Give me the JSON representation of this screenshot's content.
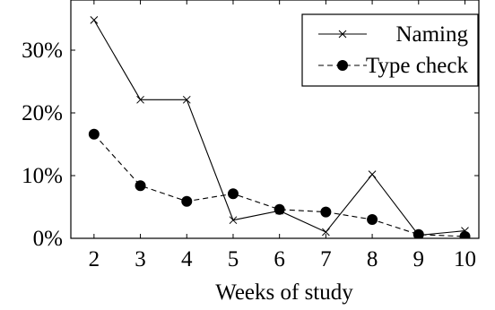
{
  "chart_data": {
    "type": "line",
    "title": "",
    "xlabel": "Weeks of study",
    "ylabel": "",
    "x": [
      2,
      3,
      4,
      5,
      6,
      7,
      8,
      9,
      10
    ],
    "xlim": [
      1.5,
      10.3
    ],
    "ylim": [
      0,
      38
    ],
    "y_ticks": [
      0,
      10,
      20,
      30
    ],
    "y_tick_labels": [
      "0%",
      "10%",
      "20%",
      "30%"
    ],
    "x_tick_labels": [
      "2",
      "3",
      "4",
      "5",
      "6",
      "7",
      "8",
      "9",
      "10"
    ],
    "grid": false,
    "legend_position": "top-right",
    "series": [
      {
        "name": "Naming",
        "values": [
          34.8,
          22.1,
          22.1,
          2.9,
          4.4,
          1.0,
          10.2,
          0.5,
          1.2
        ],
        "marker": "cross",
        "line_style": "solid",
        "color": "#000000"
      },
      {
        "name": "Type check",
        "values": [
          16.6,
          8.4,
          5.9,
          7.1,
          4.6,
          4.2,
          3.0,
          0.6,
          0.3
        ],
        "marker": "circle",
        "line_style": "dashed",
        "color": "#000000"
      }
    ]
  }
}
